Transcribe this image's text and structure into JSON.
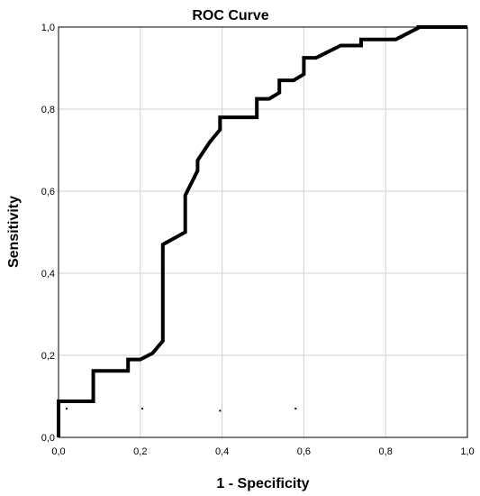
{
  "chart_data": {
    "type": "line",
    "title": "ROC Curve",
    "xlabel": "1 - Specificity",
    "ylabel": "Sensitivity",
    "xlim": [
      0,
      1
    ],
    "ylim": [
      0,
      1
    ],
    "grid": true,
    "legend": "none",
    "line_color": "#000000",
    "grid_color": "#d0d0d0",
    "x_ticks": [
      {
        "value": 0.0,
        "label": "0,0"
      },
      {
        "value": 0.2,
        "label": "0,2"
      },
      {
        "value": 0.4,
        "label": "0,4"
      },
      {
        "value": 0.6,
        "label": "0,6"
      },
      {
        "value": 0.8,
        "label": "0,8"
      },
      {
        "value": 1.0,
        "label": "1,0"
      }
    ],
    "y_ticks": [
      {
        "value": 0.0,
        "label": "0,0"
      },
      {
        "value": 0.2,
        "label": "0,2"
      },
      {
        "value": 0.4,
        "label": "0,4"
      },
      {
        "value": 0.6,
        "label": "0,6"
      },
      {
        "value": 0.8,
        "label": "0,8"
      },
      {
        "value": 1.0,
        "label": "1,0"
      }
    ],
    "series": [
      {
        "x": [
          0.0,
          0.0,
          0.085,
          0.085,
          0.17,
          0.17,
          0.2,
          0.23,
          0.255,
          0.255,
          0.31,
          0.31,
          0.34,
          0.34,
          0.37,
          0.395,
          0.395,
          0.485,
          0.485,
          0.515,
          0.54,
          0.54,
          0.575,
          0.6,
          0.6,
          0.63,
          0.66,
          0.69,
          0.74,
          0.74,
          0.825,
          0.88,
          0.88,
          1.0
        ],
        "y": [
          0.0,
          0.088,
          0.088,
          0.162,
          0.162,
          0.19,
          0.19,
          0.205,
          0.235,
          0.47,
          0.5,
          0.59,
          0.65,
          0.675,
          0.72,
          0.75,
          0.78,
          0.78,
          0.825,
          0.825,
          0.84,
          0.87,
          0.87,
          0.885,
          0.925,
          0.925,
          0.94,
          0.955,
          0.955,
          0.97,
          0.97,
          0.998,
          1.0,
          1.0
        ]
      }
    ],
    "reference_points": {
      "x": [
        0.02,
        0.205,
        0.395,
        0.58
      ],
      "y": [
        0.07,
        0.07,
        0.065,
        0.07
      ]
    }
  }
}
